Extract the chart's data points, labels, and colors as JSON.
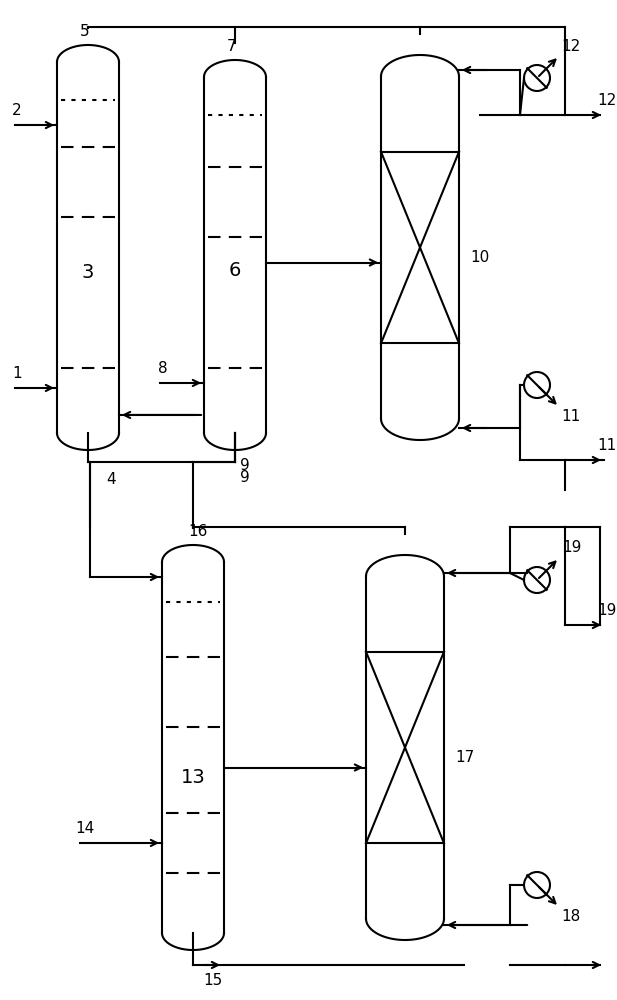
{
  "bg_color": "#ffffff",
  "line_color": "#000000",
  "fig_width": 6.17,
  "fig_height": 10.0,
  "dpi": 100,
  "lw": 1.5,
  "lw_thin": 1.2
}
